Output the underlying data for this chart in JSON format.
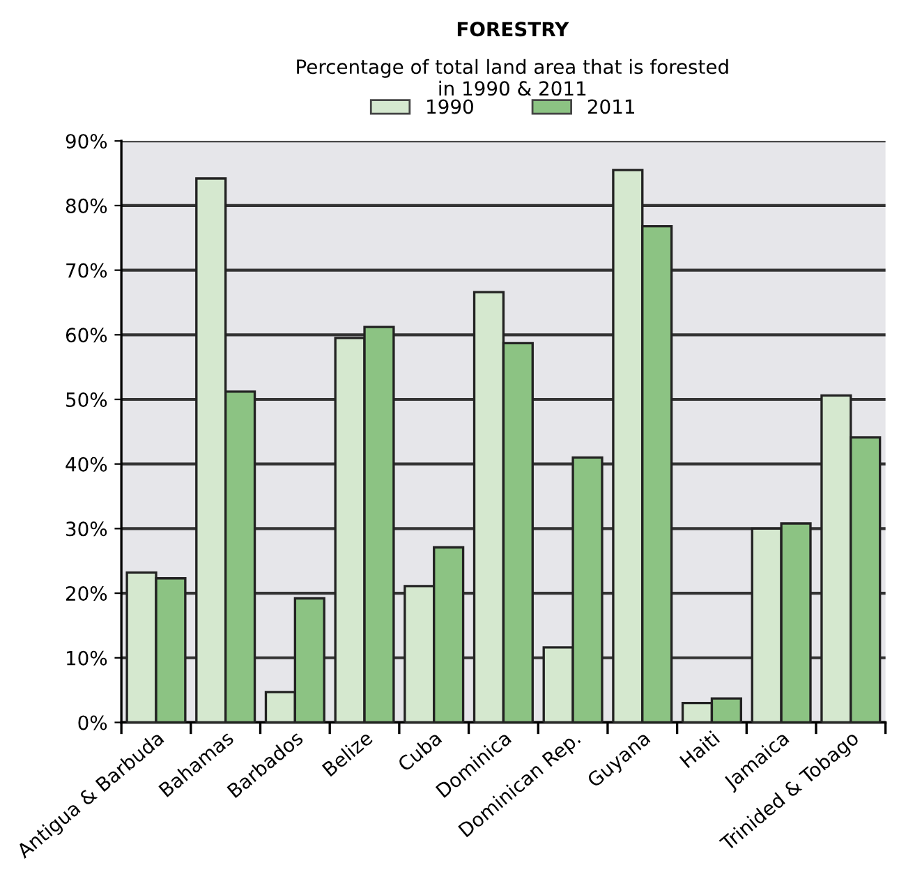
{
  "chart_data": {
    "type": "bar",
    "title": "FORESTRY",
    "subtitle": "Percentage of total land area that is forested\nin 1990 & 2011",
    "categories": [
      "Antigua & Barbuda",
      "Bahamas",
      "Barbados",
      "Belize",
      "Cuba",
      "Dominica",
      "Dominican Rep.",
      "Guyana",
      "Haiti",
      "Jamaica",
      "Trinided & Tobago"
    ],
    "series": [
      {
        "name": "1990",
        "color": "#d5e8cf",
        "values": [
          23.2,
          84.2,
          4.7,
          59.5,
          21.1,
          66.6,
          11.6,
          85.5,
          3.0,
          30.0,
          50.6
        ]
      },
      {
        "name": "2011",
        "color": "#8cc383",
        "values": [
          22.3,
          51.2,
          19.2,
          61.2,
          27.1,
          58.7,
          41.0,
          76.8,
          3.7,
          30.8,
          44.1
        ]
      }
    ],
    "ylim": [
      0,
      90
    ],
    "yticks": [
      {
        "value": 0,
        "label": "0%"
      },
      {
        "value": 10,
        "label": "10%"
      },
      {
        "value": 20,
        "label": "20%"
      },
      {
        "value": 30,
        "label": "30%"
      },
      {
        "value": 40,
        "label": "40%"
      },
      {
        "value": 50,
        "label": "50%"
      },
      {
        "value": 60,
        "label": "60%"
      },
      {
        "value": 70,
        "label": "70%"
      },
      {
        "value": 80,
        "label": "80%"
      },
      {
        "value": 90,
        "label": "90%"
      }
    ],
    "grid": "y",
    "legend": "top"
  }
}
